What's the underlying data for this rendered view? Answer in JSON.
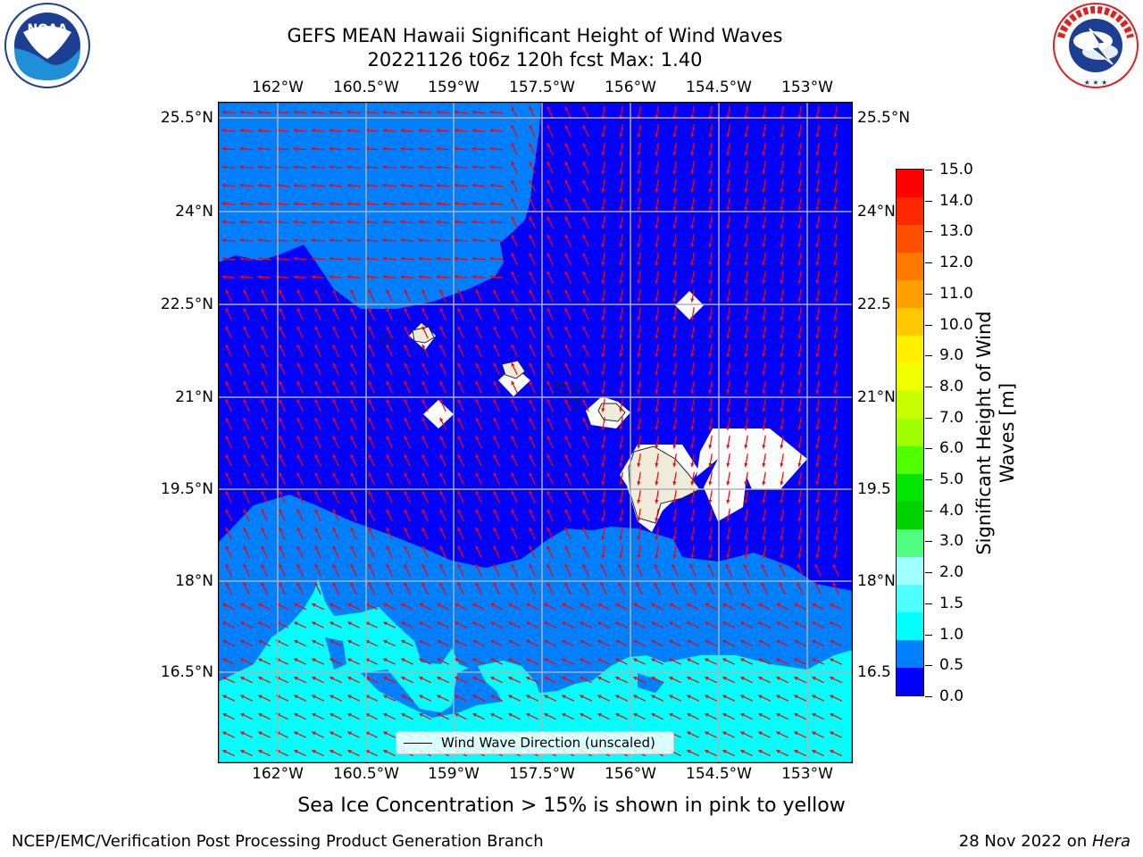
{
  "title": {
    "line1": "GEFS MEAN Hawaii Significant Height of Wind Waves",
    "line2": "20221126 t06z 120h fcst   Max: 1.40"
  },
  "logos": {
    "left": {
      "name": "noaa-logo",
      "text": "NOAA",
      "ring_text": "NATIONAL OCEANIC AND ATMOSPHERIC ADMINISTRATION · U.S. DEPARTMENT OF COMMERCE"
    },
    "right": {
      "name": "nws-logo",
      "ring_text": "NATIONAL WEATHER SERVICE"
    }
  },
  "map": {
    "lon_ticks": [
      "162°W",
      "160.5°W",
      "159°W",
      "157.5°W",
      "156°W",
      "154.5°W",
      "153°W"
    ],
    "lat_ticks": [
      "25.5°N",
      "24°N",
      "22.5°N",
      "21°N",
      "19.5°N",
      "18°N",
      "16.5°N"
    ],
    "lat_ticks_right": [
      "25.5°N",
      "24°N",
      "22.5",
      "21°N",
      "19.5",
      "18°N",
      "16.5"
    ],
    "legend_label": "Wind Wave Direction (unscaled)",
    "colors": {
      "band_0_05": "#0000ff",
      "band_05_1": "#0080ff",
      "band_1_15": "#00ffff",
      "arrow": "#ff0000",
      "land": "#f0ecdc",
      "grid": "#b0b0b0"
    }
  },
  "colorbar": {
    "label": "Significant Height of Wind Waves [m]",
    "label_line1": "Significant Height of Wind",
    "label_line2": "Waves [m]",
    "ticks": [
      "15.0",
      "14.0",
      "13.0",
      "12.0",
      "11.0",
      "10.0",
      "9.0",
      "8.0",
      "7.0",
      "6.0",
      "5.0",
      "4.0",
      "3.0",
      "2.0",
      "1.5",
      "1.0",
      "0.5",
      "0.0"
    ],
    "colors_top_to_bottom": [
      "#ff0000",
      "#ff2800",
      "#ff5000",
      "#ff7800",
      "#ffa000",
      "#ffc800",
      "#fff000",
      "#f0ff00",
      "#c8ff00",
      "#a0ff00",
      "#50ff00",
      "#00e600",
      "#00d200",
      "#50ff80",
      "#a0ffff",
      "#50ffff",
      "#00ffff",
      "#0080ff",
      "#0000ff"
    ]
  },
  "caption": "Sea Ice Concentration > 15% is shown in pink to yellow",
  "footer": {
    "left": "NCEP/EMC/Verification Post Processing Product Generation Branch",
    "right_prefix": "28 Nov 2022 on ",
    "right_machine": "Hera"
  }
}
